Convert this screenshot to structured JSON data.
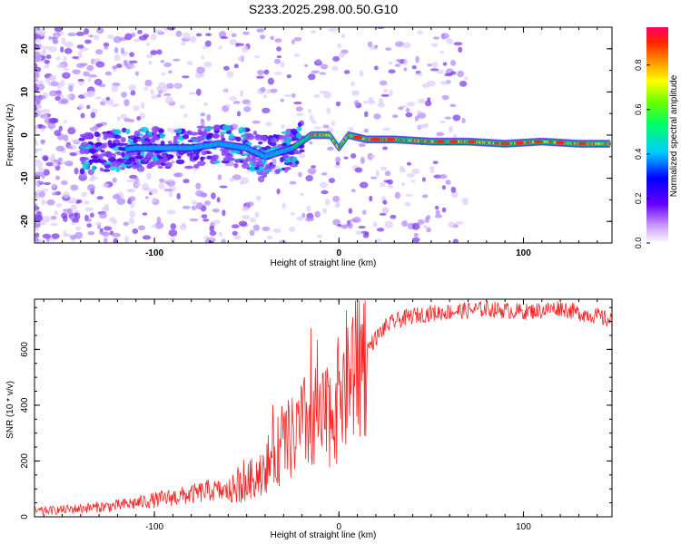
{
  "title": "S233.2025.298.00.50.G10",
  "chart_data": [
    {
      "type": "heatmap",
      "title": "S233.2025.298.00.50.G10",
      "xlabel": "Height of straight line (km)",
      "ylabel": "Frequency (Hz)",
      "xlim": [
        -165,
        148
      ],
      "ylim": [
        -25,
        25
      ],
      "xticks": [
        -100,
        0,
        100
      ],
      "yticks": [
        -20,
        -10,
        0,
        10,
        20
      ],
      "colorbar": {
        "label": "Normalized spectral amplitude",
        "range": [
          0,
          0.97
        ],
        "ticks": [
          0.0,
          0.2,
          0.4,
          0.6,
          0.8
        ],
        "colormap": [
          "#ffffff",
          "#9966ff",
          "#3300ff",
          "#00ffff",
          "#00ff00",
          "#ffff00",
          "#ff6600",
          "#ff0066"
        ]
      },
      "ridge": {
        "description_points_x": [
          -130,
          -110,
          -95,
          -80,
          -65,
          -50,
          -40,
          -25,
          -15,
          -5,
          0,
          5,
          15,
          30,
          50,
          70,
          90,
          110,
          130,
          145
        ],
        "description_points_freq": [
          -4,
          -3,
          -3,
          -3,
          -2,
          -3,
          -5,
          -3,
          0,
          0,
          -3,
          0,
          -1,
          -1,
          -1.5,
          -1.5,
          -2,
          -1.5,
          -2,
          -2
        ]
      }
    },
    {
      "type": "line",
      "xlabel": "Height of straight line (km)",
      "ylabel": "SNR (10 * v/v)",
      "xlim": [
        -165,
        148
      ],
      "ylim": [
        0,
        780
      ],
      "xticks": [
        -100,
        0,
        100
      ],
      "yticks": [
        0,
        200,
        400,
        600
      ],
      "series": [
        {
          "name": "SNR",
          "color": "#ff2222",
          "x": [
            -165,
            -150,
            -140,
            -130,
            -120,
            -110,
            -100,
            -90,
            -80,
            -70,
            -60,
            -50,
            -45,
            -40,
            -35,
            -30,
            -25,
            -20,
            -15,
            -10,
            -5,
            0,
            5,
            10,
            15,
            20,
            25,
            30,
            40,
            50,
            60,
            70,
            80,
            90,
            100,
            110,
            120,
            130,
            140,
            148
          ],
          "values": [
            20,
            25,
            30,
            35,
            40,
            50,
            60,
            70,
            80,
            95,
            90,
            120,
            150,
            180,
            220,
            260,
            280,
            320,
            360,
            320,
            380,
            420,
            500,
            560,
            600,
            640,
            680,
            700,
            720,
            730,
            735,
            740,
            745,
            740,
            735,
            740,
            750,
            730,
            720,
            700
          ]
        }
      ],
      "annotations": [
        {
          "x": -30,
          "y": 680,
          "text": ""
        }
      ]
    }
  ]
}
